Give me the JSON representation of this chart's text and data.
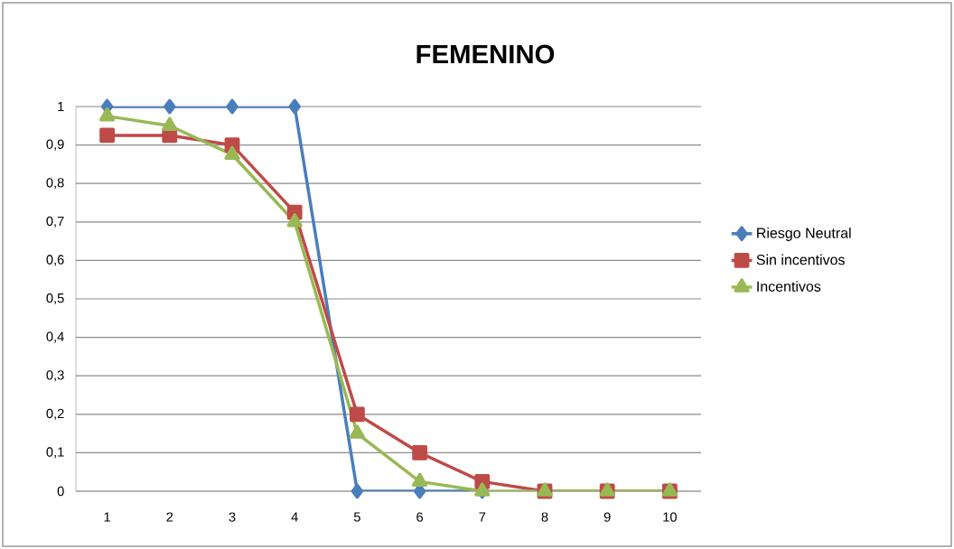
{
  "chart_data": {
    "type": "line",
    "title": "FEMENINO",
    "categories": [
      "1",
      "2",
      "3",
      "4",
      "5",
      "6",
      "7",
      "8",
      "9",
      "10"
    ],
    "series": [
      {
        "name": "Riesgo Neutral",
        "color": "#4a7ebb",
        "marker": "diamond",
        "values": [
          1,
          1,
          1,
          1,
          0,
          0,
          0,
          null,
          null,
          null
        ]
      },
      {
        "name": "Sin incentivos",
        "color": "#be4b48",
        "marker": "square",
        "values": [
          0.925,
          0.925,
          0.9,
          0.725,
          0.2,
          0.1,
          0.025,
          0,
          0,
          0
        ]
      },
      {
        "name": "Incentivos",
        "color": "#98b954",
        "marker": "triangle",
        "values": [
          0.975,
          0.95,
          0.875,
          0.7,
          0.15,
          0.025,
          0,
          0,
          0,
          0
        ]
      }
    ],
    "ylim": [
      0,
      1
    ],
    "yticks": [
      0,
      {
        "value": 0.1,
        "label": "0,1"
      },
      {
        "value": 0.2,
        "label": "0,2"
      },
      {
        "value": 0.3,
        "label": "0,3"
      },
      {
        "value": 0.4,
        "label": "0,4"
      },
      {
        "value": 0.5,
        "label": "0,5"
      },
      {
        "value": 0.6,
        "label": "0,6"
      },
      {
        "value": 0.7,
        "label": "0,7"
      },
      {
        "value": 0.8,
        "label": "0,8"
      },
      {
        "value": 0.9,
        "label": "0,9"
      },
      1
    ],
    "grid": "y",
    "legend": "right",
    "line_style": "solid"
  }
}
